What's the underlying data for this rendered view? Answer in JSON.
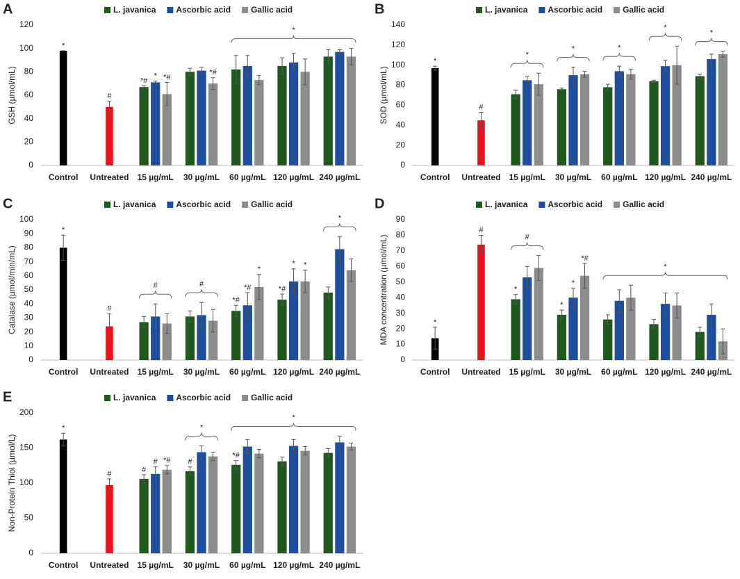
{
  "chart_data": [
    {
      "type": "bar",
      "panel": "A",
      "ylabel": "GSH (µmol/mL)",
      "ylim": [
        0,
        120
      ],
      "yticks": [
        0,
        20,
        40,
        60,
        80,
        100,
        120
      ],
      "categories": [
        "Control",
        "Untreated",
        "15 µg/mL",
        "30 µg/mL",
        "60 µg/mL",
        "120 µg/mL",
        "240 µg/mL"
      ],
      "baseline": {
        "values": [
          98,
          50,
          null,
          null,
          null,
          null,
          null
        ],
        "errors": [
          0,
          5,
          null,
          null,
          null,
          null,
          null
        ],
        "labels": [
          "*",
          "#",
          null,
          null,
          null,
          null,
          null
        ],
        "colors": [
          "#000000",
          "#e8141b",
          null,
          null,
          null,
          null,
          null
        ]
      },
      "series": [
        {
          "name": "L. javanica",
          "color": "#1e5a1e",
          "values": [
            null,
            null,
            67,
            80,
            82,
            85,
            93
          ],
          "errors": [
            null,
            null,
            1,
            3,
            12,
            7,
            6
          ],
          "labels": [
            null,
            null,
            "*#",
            null,
            null,
            null,
            null
          ]
        },
        {
          "name": "Ascorbic acid",
          "color": "#1f4e9c",
          "values": [
            null,
            null,
            71,
            81,
            85,
            88,
            97
          ],
          "errors": [
            null,
            null,
            1,
            3,
            9,
            8,
            2
          ],
          "labels": [
            null,
            null,
            "*",
            null,
            null,
            null,
            null
          ]
        },
        {
          "name": "Gallic acid",
          "color": "#8c8c8c",
          "values": [
            null,
            null,
            61,
            70,
            73,
            80,
            93
          ],
          "errors": [
            null,
            null,
            10,
            5,
            4,
            11,
            7
          ],
          "labels": [
            null,
            null,
            "*#",
            "*#",
            null,
            null,
            null
          ]
        }
      ],
      "brackets": [
        {
          "span": [
            "60 µg/mL",
            "240 µg/mL"
          ],
          "label": "*"
        }
      ]
    },
    {
      "type": "bar",
      "panel": "B",
      "ylabel": "SOD  (µmol/mL)",
      "ylim": [
        0,
        140
      ],
      "yticks": [
        0,
        20,
        40,
        60,
        80,
        100,
        120,
        140
      ],
      "categories": [
        "Control",
        "Untreated",
        "15 µg/mL",
        "30 µg/mL",
        "60 µg/mL",
        "120 µg/mL",
        "240 µg/mL"
      ],
      "baseline": {
        "values": [
          97,
          45,
          null,
          null,
          null,
          null,
          null
        ],
        "errors": [
          2,
          8,
          null,
          null,
          null,
          null,
          null
        ],
        "labels": [
          "*",
          "#",
          null,
          null,
          null,
          null,
          null
        ],
        "colors": [
          "#000000",
          "#e8141b",
          null,
          null,
          null,
          null,
          null
        ]
      },
      "series": [
        {
          "name": "L. javanica",
          "color": "#1e5a1e",
          "values": [
            null,
            null,
            71,
            76,
            78,
            84,
            89
          ],
          "errors": [
            null,
            null,
            4,
            1,
            3,
            1,
            2
          ],
          "labels": [
            null,
            null,
            null,
            null,
            null,
            null,
            null
          ]
        },
        {
          "name": "Ascorbic acid",
          "color": "#1f4e9c",
          "values": [
            null,
            null,
            85,
            90,
            94,
            99,
            106
          ],
          "errors": [
            null,
            null,
            4,
            8,
            5,
            6,
            5
          ],
          "labels": [
            null,
            null,
            null,
            null,
            null,
            null,
            null
          ]
        },
        {
          "name": "Gallic acid",
          "color": "#8c8c8c",
          "values": [
            null,
            null,
            81,
            91,
            91,
            100,
            111
          ],
          "errors": [
            null,
            null,
            11,
            3,
            5,
            19,
            3
          ],
          "labels": [
            null,
            null,
            null,
            null,
            null,
            null,
            null
          ]
        }
      ],
      "brackets": [
        {
          "span": [
            "15 µg/mL",
            "15 µg/mL"
          ],
          "label": "*"
        },
        {
          "span": [
            "30 µg/mL",
            "30 µg/mL"
          ],
          "label": "*"
        },
        {
          "span": [
            "60 µg/mL",
            "60 µg/mL"
          ],
          "label": "*"
        },
        {
          "span": [
            "120 µg/mL",
            "120 µg/mL"
          ],
          "label": "*"
        },
        {
          "span": [
            "240 µg/mL",
            "240 µg/mL"
          ],
          "label": "*"
        }
      ]
    },
    {
      "type": "bar",
      "panel": "C",
      "ylabel": "Catalase (µmol/min/mL)",
      "ylim": [
        0,
        100
      ],
      "yticks": [
        0,
        10,
        20,
        30,
        40,
        50,
        60,
        70,
        80,
        90,
        100
      ],
      "categories": [
        "Control",
        "Untreated",
        "15 µg/mL",
        "30 µg/mL",
        "60 µg/mL",
        "120 µg/mL",
        "240 µg/mL"
      ],
      "baseline": {
        "values": [
          80,
          24,
          null,
          null,
          null,
          null,
          null
        ],
        "errors": [
          9,
          9,
          null,
          null,
          null,
          null,
          null
        ],
        "labels": [
          "*",
          "#",
          null,
          null,
          null,
          null,
          null
        ],
        "colors": [
          "#000000",
          "#e8141b",
          null,
          null,
          null,
          null,
          null
        ]
      },
      "series": [
        {
          "name": "L. javanica",
          "color": "#1e5a1e",
          "values": [
            null,
            null,
            27,
            31,
            35,
            43,
            48
          ],
          "errors": [
            null,
            null,
            4,
            4,
            4,
            4,
            4
          ],
          "labels": [
            null,
            null,
            null,
            null,
            "*#",
            "*#",
            null
          ]
        },
        {
          "name": "Ascorbic acid",
          "color": "#1f4e9c",
          "values": [
            null,
            null,
            31,
            32,
            39,
            56,
            79
          ],
          "errors": [
            null,
            null,
            9,
            9,
            9,
            9,
            9
          ],
          "labels": [
            null,
            null,
            null,
            null,
            "*#",
            "*",
            null
          ]
        },
        {
          "name": "Gallic acid",
          "color": "#8c8c8c",
          "values": [
            null,
            null,
            26,
            28,
            52,
            56,
            64
          ],
          "errors": [
            null,
            null,
            7,
            8,
            9,
            8,
            8
          ],
          "labels": [
            null,
            null,
            null,
            null,
            "*",
            "*",
            null
          ]
        }
      ],
      "brackets": [
        {
          "span": [
            "15 µg/mL",
            "15 µg/mL"
          ],
          "label": "#"
        },
        {
          "span": [
            "30 µg/mL",
            "30 µg/mL"
          ],
          "label": "#"
        },
        {
          "span": [
            "240 µg/mL",
            "240 µg/mL"
          ],
          "label": "*"
        }
      ]
    },
    {
      "type": "bar",
      "panel": "D",
      "ylabel": "MDA concentration  (µmol/mL)",
      "ylim": [
        0,
        90
      ],
      "yticks": [
        0,
        10,
        20,
        30,
        40,
        50,
        60,
        70,
        80,
        90
      ],
      "categories": [
        "Control",
        "Untreated",
        "15 µg/mL",
        "30 µg/mL",
        "60 µg/mL",
        "120 µg/mL",
        "240 µg/mL"
      ],
      "baseline": {
        "values": [
          14,
          74,
          null,
          null,
          null,
          null,
          null
        ],
        "errors": [
          7,
          6,
          null,
          null,
          null,
          null,
          null
        ],
        "labels": [
          "*",
          "#",
          null,
          null,
          null,
          null,
          null
        ],
        "colors": [
          "#000000",
          "#e8141b",
          null,
          null,
          null,
          null,
          null
        ]
      },
      "series": [
        {
          "name": "L. javanica",
          "color": "#1e5a1e",
          "values": [
            null,
            null,
            39,
            29,
            26,
            23,
            18
          ],
          "errors": [
            null,
            null,
            3,
            3,
            3,
            3,
            3
          ],
          "labels": [
            null,
            null,
            "*",
            "*",
            null,
            null,
            null
          ]
        },
        {
          "name": "Ascorbic acid",
          "color": "#1f4e9c",
          "values": [
            null,
            null,
            53,
            40,
            38,
            36,
            29
          ],
          "errors": [
            null,
            null,
            7,
            6,
            7,
            7,
            7
          ],
          "labels": [
            null,
            null,
            null,
            "*",
            null,
            null,
            null
          ]
        },
        {
          "name": "Gallic acid",
          "color": "#8c8c8c",
          "values": [
            null,
            null,
            59,
            54,
            40,
            35,
            12
          ],
          "errors": [
            null,
            null,
            8,
            8,
            8,
            8,
            8
          ],
          "labels": [
            null,
            null,
            null,
            "*#",
            null,
            null,
            null
          ]
        }
      ],
      "brackets": [
        {
          "span": [
            "15 µg/mL",
            "15 µg/mL"
          ],
          "label": "#"
        },
        {
          "span": [
            "60 µg/mL",
            "240 µg/mL"
          ],
          "label": "*"
        }
      ]
    },
    {
      "type": "bar",
      "panel": "E",
      "ylabel": "Non-Protein Thiol (µmol/L)",
      "ylim": [
        0,
        200
      ],
      "yticks": [
        0,
        50,
        100,
        150,
        200
      ],
      "categories": [
        "Control",
        "Untreated",
        "15 µg/mL",
        "30 µg/mL",
        "60 µg/mL",
        "120 µg/mL",
        "240 µg/mL"
      ],
      "baseline": {
        "values": [
          162,
          97,
          null,
          null,
          null,
          null,
          null
        ],
        "errors": [
          9,
          9,
          null,
          null,
          null,
          null,
          null
        ],
        "labels": [
          "*",
          "#",
          null,
          null,
          null,
          null,
          null
        ],
        "colors": [
          "#000000",
          "#e8141b",
          null,
          null,
          null,
          null,
          null
        ]
      },
      "series": [
        {
          "name": "L. javanica",
          "color": "#1e5a1e",
          "values": [
            null,
            null,
            106,
            117,
            126,
            131,
            143
          ],
          "errors": [
            null,
            null,
            6,
            6,
            6,
            6,
            6
          ],
          "labels": [
            null,
            null,
            "#",
            "#",
            "*#",
            null,
            null
          ]
        },
        {
          "name": "Ascorbic acid",
          "color": "#1f4e9c",
          "values": [
            null,
            null,
            113,
            144,
            152,
            153,
            158
          ],
          "errors": [
            null,
            null,
            10,
            9,
            10,
            9,
            9
          ],
          "labels": [
            null,
            null,
            "#",
            null,
            null,
            null,
            null
          ]
        },
        {
          "name": "Gallic acid",
          "color": "#8c8c8c",
          "values": [
            null,
            null,
            119,
            138,
            142,
            146,
            152
          ],
          "errors": [
            null,
            null,
            6,
            6,
            6,
            6,
            5
          ],
          "labels": [
            null,
            null,
            "*#",
            null,
            null,
            null,
            null
          ]
        }
      ],
      "brackets": [
        {
          "span": [
            "30 µg/mL",
            "30 µg/mL"
          ],
          "label": "*"
        },
        {
          "span": [
            "60 µg/mL",
            "240 µg/mL"
          ],
          "label": "*"
        }
      ]
    }
  ]
}
